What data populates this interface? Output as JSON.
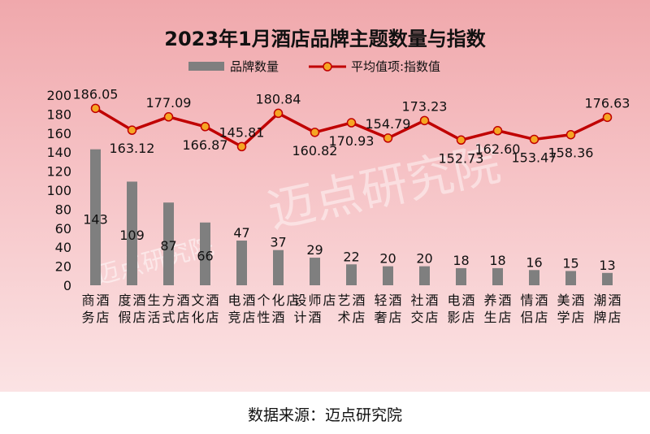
{
  "chart_data": {
    "type": "bar",
    "title": "2023年1月酒店品牌主题数量与指数",
    "categories": [
      "商务酒店",
      "度假酒店",
      "生活方式酒店",
      "文化酒店",
      "电竞酒店",
      "个性化酒店",
      "设计师酒店",
      "艺术酒店",
      "轻奢酒店",
      "社交酒店",
      "电影酒店",
      "养生酒店",
      "情侣酒店",
      "美学酒店",
      "潮牌酒店"
    ],
    "series": [
      {
        "name": "品牌数量",
        "kind": "bar",
        "color": "#7f7f7f",
        "values": [
          143,
          109,
          87,
          66,
          47,
          37,
          29,
          22,
          20,
          20,
          18,
          18,
          16,
          15,
          13
        ]
      },
      {
        "name": "平均值项:指数值",
        "kind": "line",
        "color": "#c00000",
        "marker_color": "#f5a623",
        "values": [
          186.05,
          163.12,
          177.09,
          166.87,
          145.81,
          180.84,
          160.82,
          170.93,
          154.79,
          173.23,
          152.73,
          162.6,
          153.47,
          158.36,
          176.63
        ]
      }
    ],
    "bar_labels": [
      "143",
      "109",
      "87",
      "66",
      "47",
      "37",
      "29",
      "22",
      "20",
      "20",
      "18",
      "18",
      "16",
      "15",
      "13"
    ],
    "line_labels": [
      "186.05",
      "163.12",
      "177.09",
      "166.87",
      "145.81",
      "180.84",
      "160.82",
      "170.93",
      "154.79",
      "173.23",
      "152.73",
      "162.60",
      "153.47",
      "158.36",
      "176.63"
    ],
    "ylim": [
      0,
      200
    ],
    "yticks": [
      0,
      20,
      40,
      60,
      80,
      100,
      120,
      140,
      160,
      180,
      200
    ],
    "legend_position": "top-center",
    "grid": false
  },
  "watermark": "迈点研究院",
  "source": "数据来源：迈点研究院"
}
